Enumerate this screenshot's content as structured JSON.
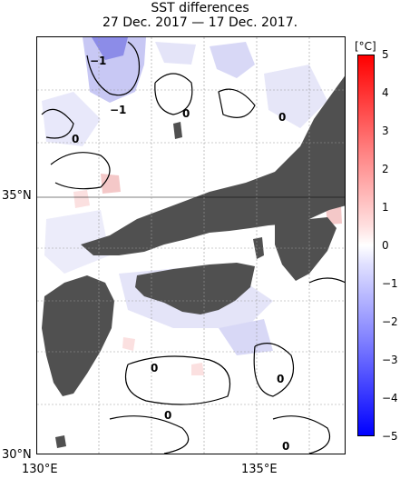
{
  "title": {
    "line1": "SST differences",
    "line2": "27 Dec. 2017 — 17 Dec. 2017."
  },
  "axes": {
    "x_ticks": [
      "130°E",
      "135°E"
    ],
    "y_ticks": [
      "30°N",
      "35°N"
    ]
  },
  "colorbar": {
    "unit": "[°C]",
    "ticks": [
      "5",
      "4",
      "3",
      "2",
      "1",
      "0",
      "−1",
      "−2",
      "−3",
      "−4",
      "−5"
    ],
    "positive_color": "#ff0000",
    "negative_color": "#0000ff",
    "land_color": "#505050"
  },
  "contour_labels": [
    {
      "text": "−1"
    },
    {
      "text": "−1"
    },
    {
      "text": "0"
    },
    {
      "text": "0"
    },
    {
      "text": "0"
    },
    {
      "text": "0"
    },
    {
      "text": "0"
    },
    {
      "text": "0"
    },
    {
      "text": "0"
    }
  ]
}
